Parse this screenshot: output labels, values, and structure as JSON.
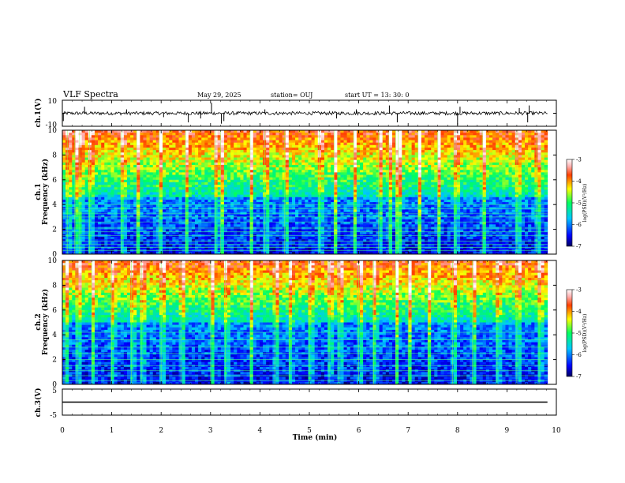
{
  "header": {
    "title": "VLF Spectra",
    "date": "May 29, 2025",
    "station": "station= OUJ",
    "start": "start  UT  =   13: 30: 0"
  },
  "chart_data": [
    {
      "type": "line",
      "panel": "ch1-waveform",
      "ylabel": "ch.1(V)",
      "ylim": [
        -10,
        10
      ],
      "y_ticks": [
        "10",
        "-10"
      ],
      "baseline": 0,
      "spikes": [
        {
          "t": 0.02,
          "v": -6
        },
        {
          "t": 0.45,
          "v": 5
        },
        {
          "t": 1.3,
          "v": 3
        },
        {
          "t": 2.05,
          "v": -3
        },
        {
          "t": 2.55,
          "v": -7
        },
        {
          "t": 2.8,
          "v": -4
        },
        {
          "t": 3.02,
          "v": 8
        },
        {
          "t": 3.22,
          "v": -8
        },
        {
          "t": 3.27,
          "v": -6
        },
        {
          "t": 4.1,
          "v": 3
        },
        {
          "t": 5.55,
          "v": -4
        },
        {
          "t": 5.95,
          "v": 3
        },
        {
          "t": 6.62,
          "v": 6
        },
        {
          "t": 6.78,
          "v": -7
        },
        {
          "t": 8.0,
          "v": -9
        },
        {
          "t": 8.05,
          "v": 5
        },
        {
          "t": 9.25,
          "v": 4
        },
        {
          "t": 9.42,
          "v": -7
        },
        {
          "t": 9.45,
          "v": 6
        }
      ]
    },
    {
      "type": "heatmap",
      "panel": "ch1-spectrogram",
      "ylabel": "ch.1\nFrequency (kHz)",
      "xlim": [
        0,
        10
      ],
      "ylim": [
        0,
        10
      ],
      "y_ticks": [
        "0",
        "2",
        "4",
        "6",
        "8",
        "10"
      ],
      "colorbar": {
        "label": "log(PSD)(V²/Hz)",
        "range": [
          -7,
          -3
        ],
        "ticks": [
          "-3",
          "-4",
          "-5",
          "-6",
          "-7"
        ]
      },
      "noise_floor_kHz": 4.5,
      "tone_lines_kHz": [
        0.3,
        0.55,
        0.8,
        1.05,
        1.5,
        1.8,
        2.1,
        2.6,
        3.0,
        3.3,
        3.65,
        4.0
      ],
      "bursts_min": [
        0.1,
        0.25,
        0.35,
        0.55,
        1.2,
        1.5,
        1.95,
        2.5,
        3.1,
        3.2,
        3.8,
        4.1,
        4.5,
        5.2,
        5.5,
        5.9,
        6.4,
        6.6,
        6.75,
        6.8,
        7.2,
        7.6,
        7.95,
        8.5,
        9.2,
        9.6
      ]
    },
    {
      "type": "heatmap",
      "panel": "ch2-spectrogram",
      "ylabel": "ch.2\nFrequency (kHz)",
      "xlim": [
        0,
        10
      ],
      "ylim": [
        0,
        10
      ],
      "y_ticks": [
        "0",
        "2",
        "4",
        "6",
        "8",
        "10"
      ],
      "colorbar": {
        "label": "log(PSD)(V²/Hz)",
        "range": [
          -7,
          -3
        ],
        "ticks": [
          "-3",
          "-4",
          "-5",
          "-6",
          "-7"
        ]
      },
      "noise_floor_kHz": 5.0,
      "tone_lines_kHz": [
        0.3,
        0.7,
        1.1,
        1.5,
        2.0,
        2.5,
        3.0,
        3.6,
        4.2
      ],
      "bursts_min": [
        0.05,
        0.3,
        0.6,
        1.0,
        1.4,
        1.6,
        2.0,
        2.4,
        3.0,
        3.3,
        3.8,
        4.3,
        4.6,
        5.0,
        5.4,
        5.6,
        6.0,
        6.3,
        6.75,
        7.0,
        7.4,
        7.9,
        8.3,
        8.8,
        9.2,
        9.65
      ]
    },
    {
      "type": "line",
      "panel": "ch3-waveform",
      "ylabel": "ch.3(V)",
      "ylim": [
        -5,
        5
      ],
      "y_ticks": [
        "5",
        "-5"
      ],
      "values_constant": 0,
      "xlabel": "Time (min)",
      "xlim": [
        0,
        10
      ],
      "x_ticks": [
        "0",
        "1",
        "2",
        "3",
        "4",
        "5",
        "6",
        "7",
        "8",
        "9",
        "10"
      ]
    }
  ]
}
